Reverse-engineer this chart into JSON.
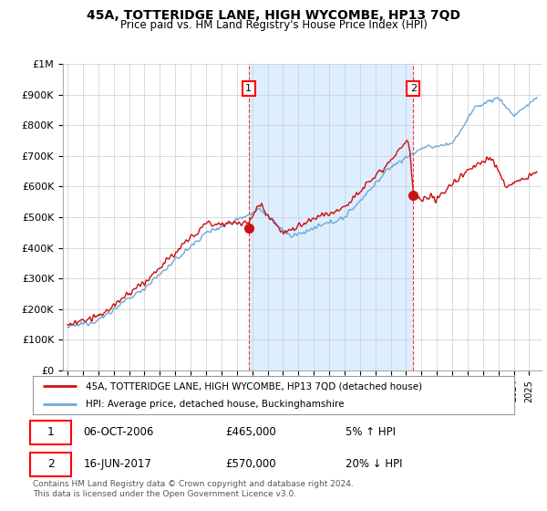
{
  "title": "45A, TOTTERIDGE LANE, HIGH WYCOMBE, HP13 7QD",
  "subtitle": "Price paid vs. HM Land Registry's House Price Index (HPI)",
  "ylim": [
    0,
    1000000
  ],
  "yticks": [
    0,
    100000,
    200000,
    300000,
    400000,
    500000,
    600000,
    700000,
    800000,
    900000,
    1000000
  ],
  "ytick_labels": [
    "£0",
    "£100K",
    "£200K",
    "£300K",
    "£400K",
    "£500K",
    "£600K",
    "£700K",
    "£800K",
    "£900K",
    "£1M"
  ],
  "xlim_start": 1994.7,
  "xlim_end": 2025.8,
  "hpi_color": "#6ea8d8",
  "price_color": "#cc1111",
  "fill_color": "#ddeeff",
  "sale1_year": 2006.77,
  "sale1_price": 465000,
  "sale2_year": 2017.46,
  "sale2_price": 570000,
  "legend_label1": "45A, TOTTERIDGE LANE, HIGH WYCOMBE, HP13 7QD (detached house)",
  "legend_label2": "HPI: Average price, detached house, Buckinghamshire",
  "annotation1_date": "06-OCT-2006",
  "annotation1_price": "£465,000",
  "annotation1_hpi": "5% ↑ HPI",
  "annotation2_date": "16-JUN-2017",
  "annotation2_price": "£570,000",
  "annotation2_hpi": "20% ↓ HPI",
  "footer": "Contains HM Land Registry data © Crown copyright and database right 2024.\nThis data is licensed under the Open Government Licence v3.0.",
  "background_color": "#ffffff",
  "grid_color": "#cccccc"
}
